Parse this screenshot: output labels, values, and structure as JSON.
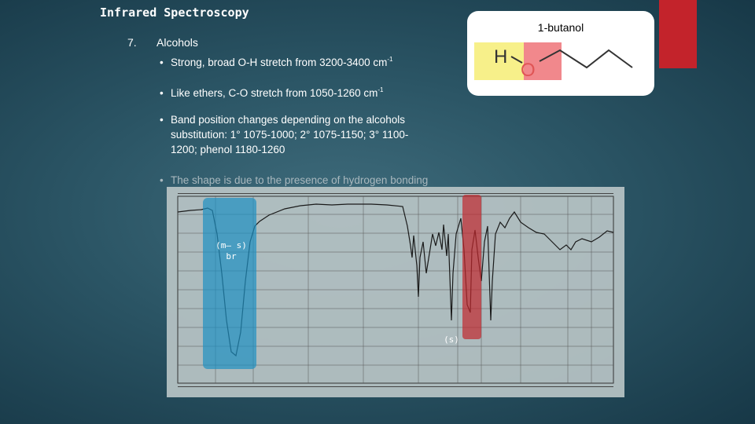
{
  "title": "Infrared Spectroscopy",
  "section": {
    "number": "7.",
    "heading": "Alcohols",
    "bullets": [
      {
        "pre": "Strong, broad O-H stretch from 3200-3400 cm",
        "sup": "-1",
        "post": ""
      },
      {
        "pre": "Like ethers, C-O stretch from 1050-1260 cm",
        "sup": "-1",
        "post": ""
      },
      {
        "lines": [
          "Band position changes depending on the alcohols",
          "substitution: 1° 1075-1000; 2° 1075-1150; 3° 1100-",
          "1200; phenol 1180-1260"
        ]
      },
      {
        "text": "The shape is due to the presence of hydrogen bonding"
      }
    ]
  },
  "molecule": {
    "name": "1-butanol",
    "atoms": {
      "h": "H",
      "o": "O"
    },
    "colors": {
      "h_highlight": "#f7f08a",
      "o_highlight": "#f1888c",
      "o_text": "#e05555"
    }
  },
  "spectrum": {
    "oh_band_label": [
      "(m– s)",
      "br"
    ],
    "co_band_label": "(s)",
    "colors": {
      "oh_band": "#1e90c2",
      "co_band": "#c0282d",
      "plot_bg": "#b9c4c6"
    }
  }
}
